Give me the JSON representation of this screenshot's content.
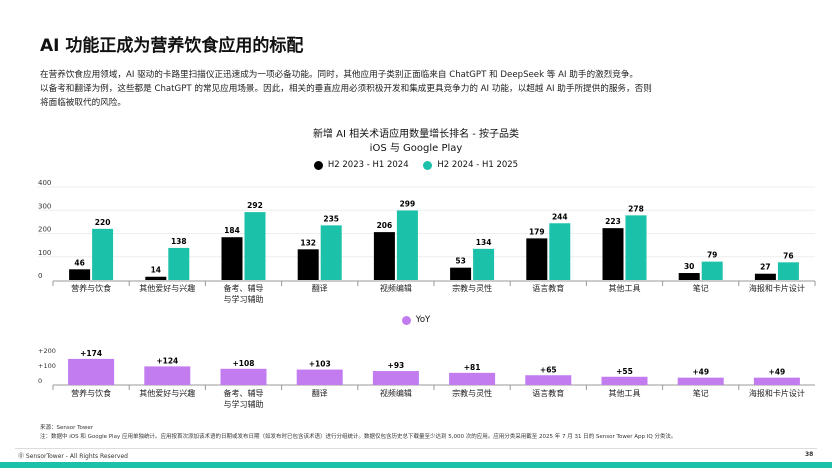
{
  "title": "AI 功能正成为营养饮食应用的标配",
  "paragraph": [
    "在营养饮食应用领域，AI 驱动的卡路里扫描仪正迅速成为一项必备功能。同时，其他应用子类别正面临来自 ChatGPT 和 DeepSeek 等 AI 助手的激烈竞争。",
    "以备考和翻译为例，这些都是 ChatGPT 的常见应用场景。因此，相关的垂直应用必须积极开发和集成更具竞争力的 AI 功能，以超越 AI 助手所提供的服务，否则",
    "将面临被取代的风险。"
  ],
  "chart_data": [
    {
      "type": "bar",
      "title": "新增 AI 相关术语应用数量增长排名 - 按子品类",
      "subtitle": "iOS 与 Google Play",
      "categories": [
        "营养与饮食",
        "其他爱好与兴趣",
        "备考、辅导与学习辅助",
        "翻译",
        "视频编辑",
        "宗教与灵性",
        "语言教育",
        "其他工具",
        "笔记",
        "海报和卡片设计"
      ],
      "yticks": [
        "0",
        "100",
        "200",
        "300",
        "400"
      ],
      "ylim": [
        0,
        400
      ],
      "legend_placement": "top",
      "series": [
        {
          "name": "H2 2023 - H1 2024",
          "color": "#000000",
          "values": [
            46,
            14,
            184,
            132,
            206,
            53,
            179,
            223,
            30,
            27
          ]
        },
        {
          "name": "H2 2024 - H1 2025",
          "color": "#1bc1a8",
          "values": [
            220,
            138,
            292,
            235,
            299,
            134,
            244,
            278,
            79,
            76
          ]
        }
      ]
    },
    {
      "type": "bar",
      "categories": [
        "营养与饮食",
        "其他爱好与兴趣",
        "备考、辅导与学习辅助",
        "翻译",
        "视频编辑",
        "宗教与灵性",
        "语言教育",
        "其他工具",
        "笔记",
        "海报和卡片设计"
      ],
      "yticks": [
        "0",
        "+100",
        "+200"
      ],
      "ylim": [
        0,
        200
      ],
      "legend_placement": "top",
      "series": [
        {
          "name": "YoY",
          "color": "#c27cf0",
          "values": [
            174,
            124,
            108,
            103,
            93,
            81,
            65,
            55,
            49,
            49
          ],
          "labels": [
            "+174",
            "+124",
            "+108",
            "+103",
            "+93",
            "+81",
            "+65",
            "+55",
            "+49",
            "+49"
          ]
        }
      ]
    }
  ],
  "footer": {
    "source": "来源：Sensor Tower",
    "note": "注：数据中 iOS 和 Google Play 应用单独统计。应用按首次添加该术语的日期或发布日期（如发布时已包含该术语）进行分组统计。数据仅包含历史总下载量至少达到 5,000 次的应用。应用分类采用截至 2025 年 7 月 31 日的 Sensor Tower App IQ 分类法。",
    "brand": "SensorTower - All Rights Reserved",
    "page": "38"
  }
}
